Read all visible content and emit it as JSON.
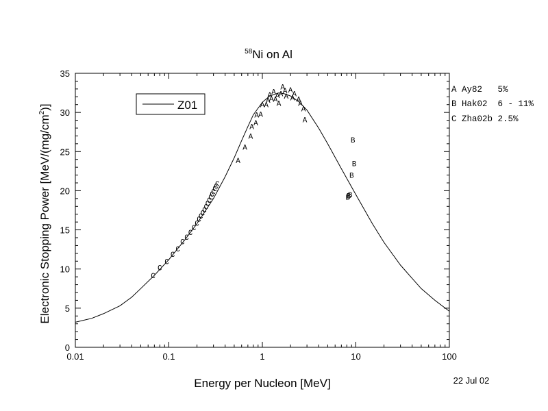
{
  "chart_data": {
    "type": "scatter",
    "title": {
      "superscript": "58",
      "text": "Ni on Al"
    },
    "xlabel": "Energy per Nucleon [MeV]",
    "ylabel": "Electronic Stopping Power [MeV/(mg/cm",
    "ylabel_superscript": "2",
    "ylabel_suffix": ")]",
    "x_scale": "log",
    "xlim": [
      0.01,
      100
    ],
    "ylim": [
      0,
      35
    ],
    "x_ticks": [
      {
        "value": 0.01,
        "label": "0.01"
      },
      {
        "value": 0.1,
        "label": "0.1"
      },
      {
        "value": 1,
        "label": "1"
      },
      {
        "value": 10,
        "label": "10"
      },
      {
        "value": 100,
        "label": "100"
      }
    ],
    "y_ticks": [
      {
        "value": 0,
        "label": "0"
      },
      {
        "value": 5,
        "label": "5"
      },
      {
        "value": 10,
        "label": "10"
      },
      {
        "value": 15,
        "label": "15"
      },
      {
        "value": 20,
        "label": "20"
      },
      {
        "value": 25,
        "label": "25"
      },
      {
        "value": 30,
        "label": "30"
      },
      {
        "value": 35,
        "label": "35"
      }
    ],
    "date_label": "22 Jul 02",
    "legend_box": {
      "label": "Z01"
    },
    "curve": {
      "name": "Z01",
      "x": [
        0.01,
        0.015,
        0.02,
        0.03,
        0.04,
        0.05,
        0.07,
        0.1,
        0.15,
        0.2,
        0.3,
        0.4,
        0.5,
        0.6,
        0.7,
        0.8,
        1.0,
        1.2,
        1.5,
        1.7,
        2.0,
        2.5,
        3.0,
        4.0,
        5.0,
        7.0,
        10,
        15,
        20,
        30,
        40,
        50,
        70,
        100
      ],
      "y": [
        3.2,
        3.7,
        4.3,
        5.3,
        6.4,
        7.5,
        9.2,
        11.2,
        13.8,
        15.8,
        19.0,
        21.8,
        24.2,
        26.4,
        28.2,
        29.7,
        31.3,
        32.1,
        32.5,
        32.4,
        32.1,
        31.3,
        30.3,
        28.0,
        26.0,
        22.8,
        19.5,
        15.8,
        13.4,
        10.5,
        8.8,
        7.5,
        6.0,
        4.6
      ]
    },
    "data_legend": [
      {
        "letter": "A",
        "text": "A Ay82   5%"
      },
      {
        "letter": "B",
        "text": "B Hak02  6 - 11%"
      },
      {
        "letter": "C",
        "text": "C Zha02b 2.5%"
      }
    ],
    "points": [
      {
        "set": "A",
        "x": 0.55,
        "y": 23.9
      },
      {
        "set": "A",
        "x": 0.65,
        "y": 25.6
      },
      {
        "set": "A",
        "x": 0.75,
        "y": 27.0
      },
      {
        "set": "A",
        "x": 0.77,
        "y": 28.2
      },
      {
        "set": "A",
        "x": 0.85,
        "y": 28.7
      },
      {
        "set": "A",
        "x": 0.87,
        "y": 29.7
      },
      {
        "set": "A",
        "x": 0.96,
        "y": 29.8
      },
      {
        "set": "A",
        "x": 1.0,
        "y": 31.0
      },
      {
        "set": "A",
        "x": 1.1,
        "y": 31.0
      },
      {
        "set": "A",
        "x": 1.15,
        "y": 31.6
      },
      {
        "set": "A",
        "x": 1.2,
        "y": 32.3
      },
      {
        "set": "A",
        "x": 1.25,
        "y": 31.8
      },
      {
        "set": "A",
        "x": 1.32,
        "y": 32.7
      },
      {
        "set": "A",
        "x": 1.38,
        "y": 31.7
      },
      {
        "set": "A",
        "x": 1.45,
        "y": 32.2
      },
      {
        "set": "A",
        "x": 1.5,
        "y": 31.2
      },
      {
        "set": "A",
        "x": 1.58,
        "y": 32.4
      },
      {
        "set": "A",
        "x": 1.65,
        "y": 33.3
      },
      {
        "set": "A",
        "x": 1.75,
        "y": 32.8
      },
      {
        "set": "A",
        "x": 1.8,
        "y": 32.1
      },
      {
        "set": "A",
        "x": 2.0,
        "y": 32.9
      },
      {
        "set": "A",
        "x": 2.1,
        "y": 31.9
      },
      {
        "set": "A",
        "x": 2.2,
        "y": 32.4
      },
      {
        "set": "A",
        "x": 2.45,
        "y": 31.7
      },
      {
        "set": "A",
        "x": 2.55,
        "y": 31.2
      },
      {
        "set": "A",
        "x": 2.75,
        "y": 30.5
      },
      {
        "set": "A",
        "x": 2.85,
        "y": 29.1
      },
      {
        "set": "B",
        "x": 8.2,
        "y": 19.2
      },
      {
        "set": "B",
        "x": 8.4,
        "y": 19.4
      },
      {
        "set": "B",
        "x": 8.7,
        "y": 19.5
      },
      {
        "set": "B",
        "x": 9.0,
        "y": 22.0
      },
      {
        "set": "B",
        "x": 9.3,
        "y": 26.5
      },
      {
        "set": "B",
        "x": 9.6,
        "y": 23.5
      },
      {
        "set": "C",
        "x": 0.068,
        "y": 9.2
      },
      {
        "set": "C",
        "x": 0.08,
        "y": 10.2
      },
      {
        "set": "C",
        "x": 0.095,
        "y": 11.0
      },
      {
        "set": "C",
        "x": 0.11,
        "y": 11.9
      },
      {
        "set": "C",
        "x": 0.125,
        "y": 12.6
      },
      {
        "set": "C",
        "x": 0.14,
        "y": 13.5
      },
      {
        "set": "C",
        "x": 0.155,
        "y": 14.1
      },
      {
        "set": "C",
        "x": 0.17,
        "y": 14.7
      },
      {
        "set": "C",
        "x": 0.185,
        "y": 15.3
      },
      {
        "set": "C",
        "x": 0.2,
        "y": 15.9
      },
      {
        "set": "C",
        "x": 0.21,
        "y": 16.4
      },
      {
        "set": "C",
        "x": 0.22,
        "y": 16.8
      },
      {
        "set": "C",
        "x": 0.23,
        "y": 17.2
      },
      {
        "set": "C",
        "x": 0.24,
        "y": 17.6
      },
      {
        "set": "C",
        "x": 0.25,
        "y": 18.0
      },
      {
        "set": "C",
        "x": 0.26,
        "y": 18.4
      },
      {
        "set": "C",
        "x": 0.27,
        "y": 18.8
      },
      {
        "set": "C",
        "x": 0.28,
        "y": 19.2
      },
      {
        "set": "C",
        "x": 0.29,
        "y": 19.6
      },
      {
        "set": "C",
        "x": 0.3,
        "y": 19.9
      },
      {
        "set": "C",
        "x": 0.31,
        "y": 20.3
      },
      {
        "set": "C",
        "x": 0.32,
        "y": 20.6
      },
      {
        "set": "C",
        "x": 0.33,
        "y": 20.9
      }
    ]
  }
}
